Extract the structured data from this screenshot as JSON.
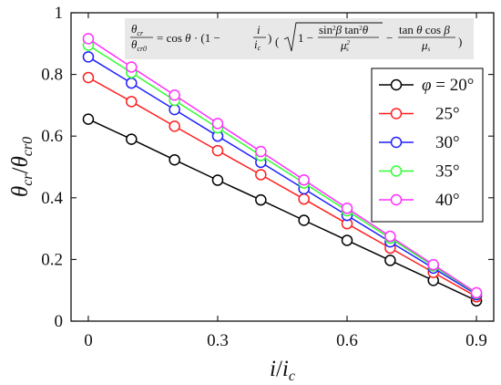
{
  "chart_data": {
    "type": "line",
    "title": "",
    "xlabel": "i/i_c",
    "ylabel": "θ_cr/θ_cr0",
    "xlim": [
      -0.04,
      0.94
    ],
    "ylim": [
      0,
      1
    ],
    "xticks": [
      0,
      0.3,
      0.6,
      0.9
    ],
    "xtick_labels": [
      "0",
      "0.3",
      "0.6",
      "0.9"
    ],
    "yticks": [
      0,
      0.2,
      0.4,
      0.6,
      0.8,
      1
    ],
    "ytick_labels": [
      "0",
      "0.2",
      "0.4",
      "0.6",
      "0.8",
      "1"
    ],
    "grid": false,
    "legend_position": "right",
    "x": [
      0,
      0.1,
      0.2,
      0.3,
      0.4,
      0.5,
      0.6,
      0.7,
      0.8,
      0.9
    ],
    "series": [
      {
        "name": "φ = 20°",
        "color": "#000000",
        "values": [
          0.655,
          0.59,
          0.523,
          0.457,
          0.393,
          0.327,
          0.262,
          0.197,
          0.132,
          0.066
        ]
      },
      {
        "name": "25°",
        "color": "#ff1f1f",
        "values": [
          0.79,
          0.712,
          0.632,
          0.553,
          0.475,
          0.396,
          0.316,
          0.237,
          0.158,
          0.079
        ]
      },
      {
        "name": "30°",
        "color": "#1f1fff",
        "values": [
          0.857,
          0.772,
          0.686,
          0.6,
          0.515,
          0.429,
          0.343,
          0.257,
          0.172,
          0.086
        ]
      },
      {
        "name": "35°",
        "color": "#2fff2f",
        "values": [
          0.895,
          0.806,
          0.716,
          0.627,
          0.537,
          0.448,
          0.358,
          0.269,
          0.179,
          0.09
        ]
      },
      {
        "name": "40°",
        "color": "#ff2fff",
        "values": [
          0.916,
          0.824,
          0.733,
          0.641,
          0.55,
          0.458,
          0.366,
          0.275,
          0.183,
          0.092
        ]
      }
    ],
    "legend": {
      "entries": [
        {
          "prefix": "φ",
          "label": " = 20°"
        },
        {
          "prefix": "",
          "label": "25°"
        },
        {
          "prefix": "",
          "label": "30°"
        },
        {
          "prefix": "",
          "label": "35°"
        },
        {
          "prefix": "",
          "label": "40°"
        }
      ]
    },
    "annotation": "θcr/θcr0 = cos θ · (1 − i/ic) ( √(1 − sin²β tan²θ / μs²) − tan θ cos β / μs )"
  },
  "labels": {
    "x_main": "i",
    "x_sep": "/",
    "x_sub_main": "i",
    "x_sub": "c",
    "y_theta1": "θ",
    "y_sub1": "cr",
    "y_sep": "/",
    "y_theta2": "θ",
    "y_sub2": "cr0"
  }
}
